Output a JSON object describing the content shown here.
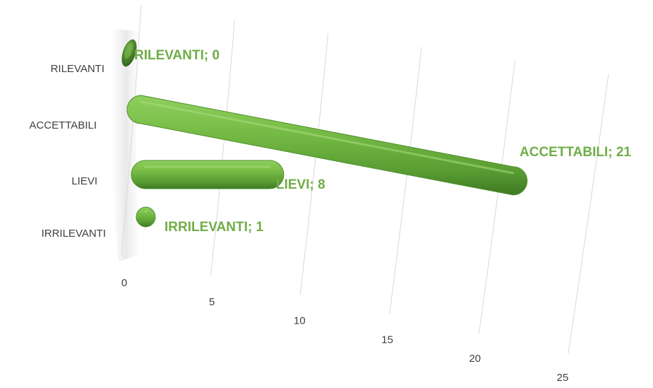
{
  "chart_data": {
    "type": "bar",
    "orientation": "horizontal",
    "style": "3d-cylinder",
    "categories": [
      "RILEVANTI",
      "ACCETTABILI",
      "LIEVI",
      "IRRILEVANTI"
    ],
    "values": [
      0,
      21,
      8,
      1
    ],
    "data_labels": [
      "RILEVANTI; 0",
      "ACCETTABILI; 21",
      "LIEVI; 8",
      "IRRILEVANTI; 1"
    ],
    "x_ticks": [
      "0",
      "5",
      "10",
      "15",
      "20",
      "25"
    ],
    "xlim": [
      0,
      25
    ],
    "title": "",
    "xlabel": "",
    "ylabel": "",
    "grid": true,
    "legend": "none",
    "colors": {
      "bar": "#70ad47",
      "bar_dark": "#3f7a22",
      "label": "#70ad47",
      "text": "#404040",
      "grid": "#d9d9d9"
    }
  }
}
